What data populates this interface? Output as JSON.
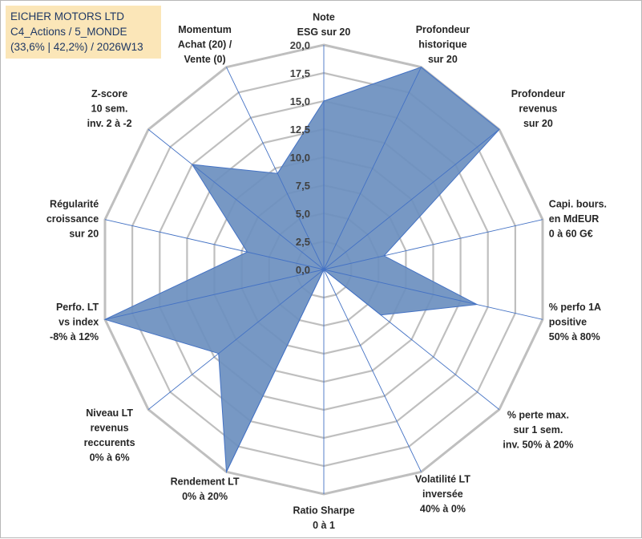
{
  "header": {
    "company": "EICHER MOTORS LTD",
    "category": "C4_Actions / 5_MONDE",
    "stats": "(33,6% | 42,2%) / 2026W13"
  },
  "colors": {
    "fill": "#6b8fbf",
    "stroke": "#4472c4",
    "grid": "#bfbfbf",
    "header_bg": "#fbe6b8",
    "header_text": "#1f3864"
  },
  "chart_data": {
    "type": "radar",
    "title": "EICHER MOTORS LTD",
    "rmin": 0,
    "rmax": 20,
    "step": 2.5,
    "tick_labels": [
      "0,0",
      "2,5",
      "5,0",
      "7,5",
      "10,0",
      "12,5",
      "15,0",
      "17,5",
      "20,0"
    ],
    "axes": [
      {
        "label": [
          "Note",
          "ESG sur 20"
        ],
        "value": 15
      },
      {
        "label": [
          "Profondeur",
          "historique",
          "sur 20"
        ],
        "value": 20
      },
      {
        "label": [
          "Profondeur",
          "revenus",
          "sur 20"
        ],
        "value": 20
      },
      {
        "label": [
          "Capi. bours.",
          "en MdEUR",
          "0 à 60 G€"
        ],
        "value": 5.5
      },
      {
        "label": [
          "% perfo 1A",
          "positive",
          "50% à 80%"
        ],
        "value": 14
      },
      {
        "label": [
          "% perte max.",
          "sur 1 sem.",
          "inv. 50% à 20%"
        ],
        "value": 6.5
      },
      {
        "label": [
          "Volatilité LT",
          "inversée",
          "40% à 0%"
        ],
        "value": 0
      },
      {
        "label": [
          "Ratio Sharpe",
          "0 à 1"
        ],
        "value": 0
      },
      {
        "label": [
          "Rendement LT",
          "0% à 20%"
        ],
        "value": 20
      },
      {
        "label": [
          "Niveau LT",
          "revenus",
          "reccurents",
          "0% à 6%"
        ],
        "value": 12
      },
      {
        "label": [
          "Perfo. LT",
          "vs index",
          "-8% à 12%"
        ],
        "value": 20
      },
      {
        "label": [
          "Régularité",
          "croissance",
          "sur 20"
        ],
        "value": 7
      },
      {
        "label": [
          "Z-score",
          "10 sem.",
          "inv. 2 à -2"
        ],
        "value": 15
      },
      {
        "label": [
          "Momentum",
          "Achat (20) /",
          "Vente (0)"
        ],
        "value": 9.5
      }
    ]
  }
}
